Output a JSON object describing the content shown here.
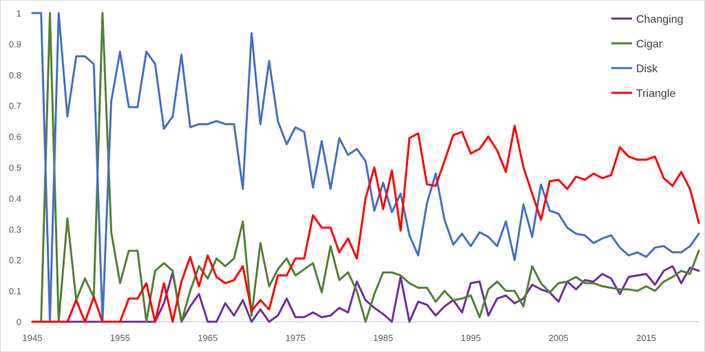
{
  "chart_data": {
    "type": "line",
    "title": "",
    "xlabel": "",
    "ylabel": "",
    "xlim": [
      1945,
      2021
    ],
    "ylim": [
      0,
      1
    ],
    "x_ticks": [
      1945,
      1955,
      1965,
      1975,
      1985,
      1995,
      2005,
      2015
    ],
    "y_ticks": [
      0,
      0.1,
      0.2,
      0.3,
      0.4,
      0.5,
      0.6,
      0.7,
      0.8,
      0.9,
      1
    ],
    "grid": false,
    "legend_position": "top-right",
    "x": [
      1945,
      1946,
      1947,
      1948,
      1949,
      1950,
      1951,
      1952,
      1953,
      1954,
      1955,
      1956,
      1957,
      1958,
      1959,
      1960,
      1961,
      1962,
      1963,
      1964,
      1965,
      1966,
      1967,
      1968,
      1969,
      1970,
      1971,
      1972,
      1973,
      1974,
      1975,
      1976,
      1977,
      1978,
      1979,
      1980,
      1981,
      1982,
      1983,
      1984,
      1985,
      1986,
      1987,
      1988,
      1989,
      1990,
      1991,
      1992,
      1993,
      1994,
      1995,
      1996,
      1997,
      1998,
      1999,
      2000,
      2001,
      2002,
      2003,
      2004,
      2005,
      2006,
      2007,
      2008,
      2009,
      2010,
      2011,
      2012,
      2013,
      2014,
      2015,
      2016,
      2017,
      2018,
      2019,
      2020,
      2021
    ],
    "series": [
      {
        "name": "Changing",
        "color": "#7030a0",
        "values": [
          0,
          0,
          0,
          0,
          0,
          0,
          0,
          0,
          0,
          0,
          0,
          0,
          0,
          0,
          0,
          0.06,
          0.16,
          0,
          0.05,
          0.09,
          0,
          0,
          0.06,
          0.02,
          0.07,
          0,
          0.04,
          0,
          0.02,
          0.075,
          0.015,
          0.015,
          0.03,
          0.015,
          0.02,
          0.045,
          0.03,
          0.13,
          0.07,
          0.045,
          0.025,
          0,
          0.145,
          0,
          0.065,
          0.055,
          0.02,
          0.05,
          0.07,
          0.03,
          0.125,
          0.13,
          0.02,
          0.075,
          0.085,
          0.06,
          0.075,
          0.12,
          0.105,
          0.095,
          0.065,
          0.13,
          0.105,
          0.135,
          0.13,
          0.155,
          0.14,
          0.09,
          0.145,
          0.15,
          0.155,
          0.12,
          0.165,
          0.18,
          0.125,
          0.175,
          0.165
        ]
      },
      {
        "name": "Cigar",
        "color": "#548235",
        "values": [
          0,
          0,
          1,
          0,
          0.335,
          0.07,
          0.14,
          0.08,
          1,
          0.29,
          0.125,
          0.23,
          0.23,
          0,
          0.165,
          0.19,
          0.165,
          0,
          0.1,
          0.18,
          0.14,
          0.205,
          0.18,
          0.205,
          0.325,
          0.02,
          0.255,
          0.115,
          0.17,
          0.205,
          0.15,
          0.17,
          0.19,
          0.095,
          0.245,
          0.135,
          0.16,
          0.1,
          0,
          0.09,
          0.16,
          0.16,
          0.15,
          0.125,
          0.11,
          0.11,
          0.065,
          0.1,
          0.07,
          0.075,
          0.085,
          0.015,
          0.105,
          0.13,
          0.1,
          0.1,
          0.05,
          0.18,
          0.125,
          0.095,
          0.125,
          0.13,
          0.145,
          0.125,
          0.125,
          0.115,
          0.11,
          0.105,
          0.105,
          0.1,
          0.115,
          0.1,
          0.13,
          0.145,
          0.165,
          0.155,
          0.23
        ]
      },
      {
        "name": "Disk",
        "color": "#4472c4",
        "values": [
          1,
          1,
          0,
          1,
          0.665,
          0.86,
          0.86,
          0.835,
          0,
          0.715,
          0.875,
          0.695,
          0.695,
          0.875,
          0.835,
          0.625,
          0.665,
          0.865,
          0.63,
          0.64,
          0.64,
          0.65,
          0.64,
          0.64,
          0.43,
          0.935,
          0.64,
          0.845,
          0.65,
          0.575,
          0.63,
          0.615,
          0.435,
          0.585,
          0.43,
          0.595,
          0.54,
          0.56,
          0.52,
          0.36,
          0.45,
          0.355,
          0.415,
          0.28,
          0.215,
          0.385,
          0.48,
          0.33,
          0.25,
          0.285,
          0.245,
          0.29,
          0.275,
          0.245,
          0.325,
          0.2,
          0.38,
          0.275,
          0.445,
          0.36,
          0.35,
          0.305,
          0.285,
          0.28,
          0.255,
          0.27,
          0.28,
          0.24,
          0.215,
          0.225,
          0.21,
          0.24,
          0.245,
          0.225,
          0.225,
          0.245,
          0.285
        ]
      },
      {
        "name": "Triangle",
        "color": "#ff0000",
        "values": [
          0,
          0,
          0,
          0,
          0,
          0.07,
          0,
          0.08,
          0,
          0,
          0,
          0.075,
          0.075,
          0.125,
          0,
          0.125,
          0,
          0.13,
          0.21,
          0.115,
          0.215,
          0.145,
          0.125,
          0.135,
          0.18,
          0.035,
          0.07,
          0.04,
          0.15,
          0.15,
          0.205,
          0.205,
          0.345,
          0.305,
          0.305,
          0.225,
          0.27,
          0.205,
          0.4,
          0.5,
          0.365,
          0.49,
          0.295,
          0.595,
          0.61,
          0.445,
          0.44,
          0.52,
          0.605,
          0.615,
          0.545,
          0.56,
          0.6,
          0.555,
          0.485,
          0.635,
          0.5,
          0.415,
          0.33,
          0.455,
          0.46,
          0.43,
          0.47,
          0.46,
          0.48,
          0.465,
          0.475,
          0.565,
          0.535,
          0.525,
          0.525,
          0.535,
          0.465,
          0.44,
          0.485,
          0.43,
          0.32
        ]
      }
    ]
  }
}
